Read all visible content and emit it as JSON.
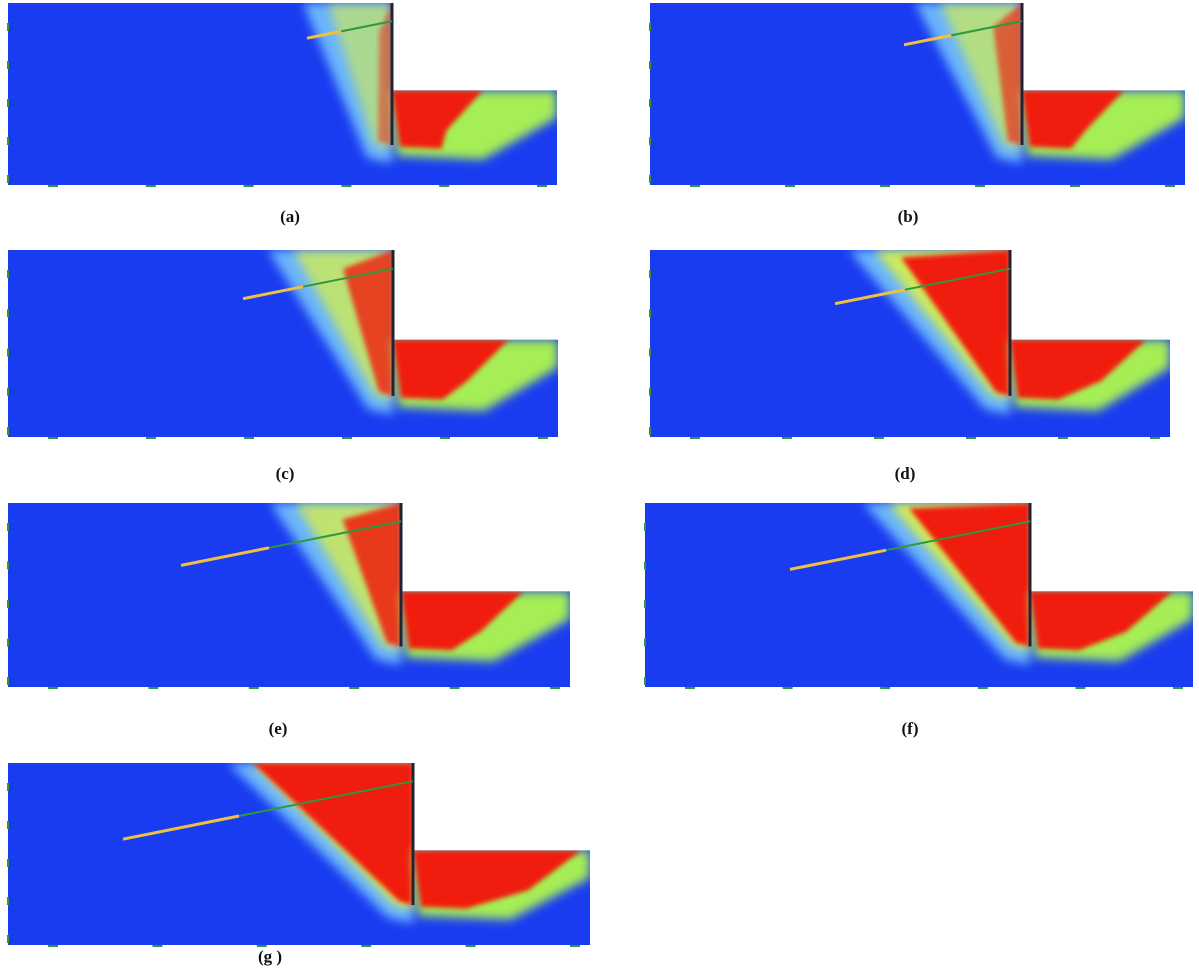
{
  "panels": [
    {
      "label": "(a)"
    },
    {
      "label": "(b)"
    },
    {
      "label": "(c)"
    },
    {
      "label": "(d)"
    },
    {
      "label": "(e)"
    },
    {
      "label": "(f)"
    },
    {
      "label": "(g )"
    }
  ]
}
